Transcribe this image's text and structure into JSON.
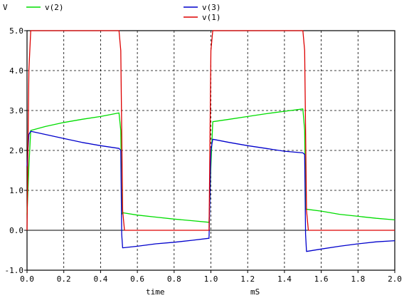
{
  "chart_data": {
    "type": "line",
    "ylabel": "V",
    "xlabel": "time",
    "xunit": "mS",
    "xlim": [
      0,
      2.0
    ],
    "ylim": [
      -1.0,
      5.0
    ],
    "xticks": [
      0.0,
      0.2,
      0.4,
      0.6,
      0.8,
      1.0,
      1.2,
      1.4,
      1.6,
      1.8,
      2.0
    ],
    "xtick_labels": [
      "0.0",
      "0.2",
      "0.4",
      "0.6",
      "0.8",
      "1.0",
      "1.2",
      "1.4",
      "1.6",
      "1.8",
      "2.0"
    ],
    "yticks": [
      -1.0,
      0.0,
      1.0,
      2.0,
      3.0,
      4.0,
      5.0
    ],
    "ytick_labels": [
      "-1.0",
      "0.0",
      "1.0",
      "2.0",
      "3.0",
      "4.0",
      "5.0"
    ],
    "grid": true,
    "series": [
      {
        "name": "v(2)",
        "color": "#00dd00",
        "points": [
          [
            0.0,
            0.4
          ],
          [
            0.01,
            1.6
          ],
          [
            0.02,
            2.5
          ],
          [
            0.1,
            2.6
          ],
          [
            0.2,
            2.7
          ],
          [
            0.3,
            2.78
          ],
          [
            0.4,
            2.85
          ],
          [
            0.5,
            2.94
          ],
          [
            0.51,
            2.5
          ],
          [
            0.515,
            0.4
          ],
          [
            0.52,
            0.44
          ],
          [
            0.6,
            0.38
          ],
          [
            0.7,
            0.33
          ],
          [
            0.8,
            0.28
          ],
          [
            0.9,
            0.24
          ],
          [
            0.99,
            0.2
          ],
          [
            1.0,
            1.6
          ],
          [
            1.01,
            2.72
          ],
          [
            1.1,
            2.78
          ],
          [
            1.2,
            2.85
          ],
          [
            1.3,
            2.92
          ],
          [
            1.4,
            2.98
          ],
          [
            1.5,
            3.04
          ],
          [
            1.51,
            2.5
          ],
          [
            1.515,
            0.53
          ],
          [
            1.6,
            0.48
          ],
          [
            1.7,
            0.4
          ],
          [
            1.8,
            0.35
          ],
          [
            1.9,
            0.3
          ],
          [
            2.0,
            0.26
          ]
        ]
      },
      {
        "name": "v(3)",
        "color": "#0000cc",
        "points": [
          [
            0.0,
            1.6
          ],
          [
            0.01,
            2.4
          ],
          [
            0.02,
            2.48
          ],
          [
            0.1,
            2.4
          ],
          [
            0.2,
            2.3
          ],
          [
            0.3,
            2.2
          ],
          [
            0.4,
            2.12
          ],
          [
            0.5,
            2.05
          ],
          [
            0.51,
            2.0
          ],
          [
            0.515,
            -0.1
          ],
          [
            0.52,
            -0.44
          ],
          [
            0.6,
            -0.4
          ],
          [
            0.7,
            -0.34
          ],
          [
            0.8,
            -0.3
          ],
          [
            0.9,
            -0.25
          ],
          [
            0.99,
            -0.2
          ],
          [
            1.0,
            2.0
          ],
          [
            1.01,
            2.28
          ],
          [
            1.1,
            2.2
          ],
          [
            1.2,
            2.12
          ],
          [
            1.3,
            2.05
          ],
          [
            1.4,
            1.98
          ],
          [
            1.5,
            1.94
          ],
          [
            1.51,
            1.9
          ],
          [
            1.515,
            -0.1
          ],
          [
            1.52,
            -0.53
          ],
          [
            1.6,
            -0.47
          ],
          [
            1.7,
            -0.4
          ],
          [
            1.8,
            -0.34
          ],
          [
            1.9,
            -0.29
          ],
          [
            2.0,
            -0.26
          ]
        ]
      },
      {
        "name": "v(1)",
        "color": "#dd0000",
        "points": [
          [
            0.0,
            0.0
          ],
          [
            0.01,
            4.0
          ],
          [
            0.02,
            5.0
          ],
          [
            0.5,
            5.0
          ],
          [
            0.51,
            4.5
          ],
          [
            0.52,
            0.5
          ],
          [
            0.53,
            0.0
          ],
          [
            0.99,
            0.0
          ],
          [
            1.0,
            4.5
          ],
          [
            1.01,
            5.0
          ],
          [
            1.5,
            5.0
          ],
          [
            1.51,
            4.5
          ],
          [
            1.52,
            0.5
          ],
          [
            1.53,
            0.0
          ],
          [
            2.0,
            0.0
          ]
        ]
      }
    ],
    "baseline": {
      "y": 0.0,
      "color": "#000000"
    }
  }
}
